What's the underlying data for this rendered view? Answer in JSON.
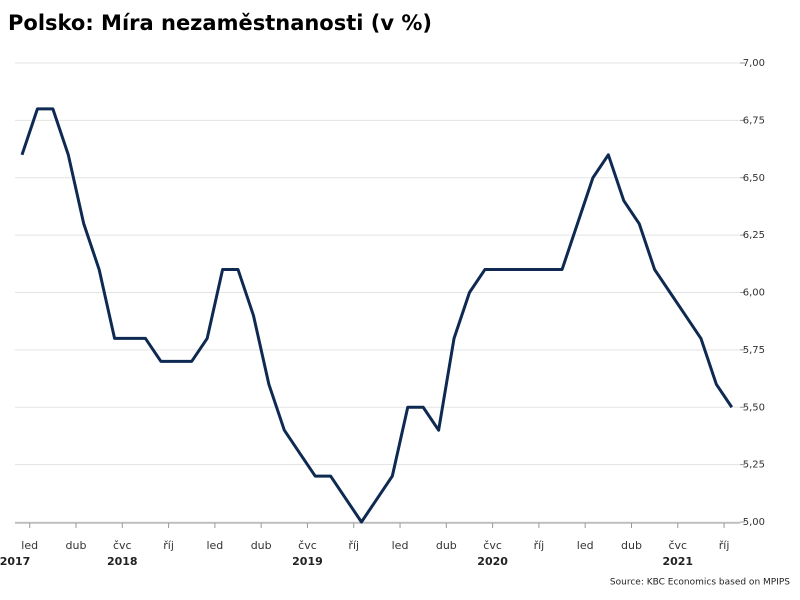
{
  "chart_data": {
    "type": "line",
    "title": "Polsko: Míra nezaměstnanosti (v %)",
    "source": "Source: KBC Economics based on MPIPS",
    "categories": [
      "led",
      null,
      null,
      "dub",
      null,
      null,
      "čvc",
      null,
      null,
      "říj",
      null,
      null,
      "led",
      null,
      null,
      "dub",
      null,
      null,
      "čvc",
      null,
      null,
      "říj",
      null,
      null,
      "led",
      null,
      null,
      "dub",
      null,
      null,
      "čvc",
      null,
      null,
      "říj",
      null,
      null,
      "led",
      null,
      null,
      "dub",
      null,
      null,
      "čvc",
      null,
      null,
      "říj",
      null
    ],
    "years": [
      "2017",
      null,
      null,
      null,
      null,
      null,
      "2018",
      null,
      null,
      null,
      null,
      null,
      null,
      null,
      null,
      null,
      null,
      null,
      "2019",
      null,
      null,
      null,
      null,
      null,
      null,
      null,
      null,
      null,
      null,
      null,
      "2020",
      null,
      null,
      null,
      null,
      null,
      null,
      null,
      null,
      null,
      null,
      null,
      "2021",
      null,
      null,
      null,
      null
    ],
    "series": [
      {
        "name": "Míra nezaměstnanosti",
        "color": "#0e2a52",
        "values": [
          6.6,
          6.8,
          6.8,
          6.6,
          6.3,
          6.1,
          5.8,
          5.8,
          5.8,
          5.7,
          5.7,
          5.7,
          5.8,
          6.1,
          6.1,
          5.9,
          5.6,
          5.4,
          5.3,
          5.2,
          5.2,
          5.1,
          5.0,
          5.1,
          5.2,
          5.5,
          5.5,
          5.4,
          5.8,
          6.0,
          6.1,
          6.1,
          6.1,
          6.1,
          6.1,
          6.1,
          6.3,
          6.5,
          6.6,
          6.4,
          6.3,
          6.1,
          6.0,
          5.9,
          5.8,
          5.6,
          5.5
        ]
      }
    ],
    "ylim": [
      5,
      7
    ],
    "yticks": [
      {
        "value": 5,
        "label": "5,00"
      },
      {
        "value": 5.25,
        "label": "5,25"
      },
      {
        "value": 5.5,
        "label": "5,50"
      },
      {
        "value": 5.75,
        "label": "5,75"
      },
      {
        "value": 6,
        "label": "6,00"
      },
      {
        "value": 6.25,
        "label": "6,25"
      },
      {
        "value": 6.5,
        "label": "6,50"
      },
      {
        "value": 6.75,
        "label": "6,75"
      },
      {
        "value": 7,
        "label": "7,00"
      }
    ],
    "grid": true
  }
}
